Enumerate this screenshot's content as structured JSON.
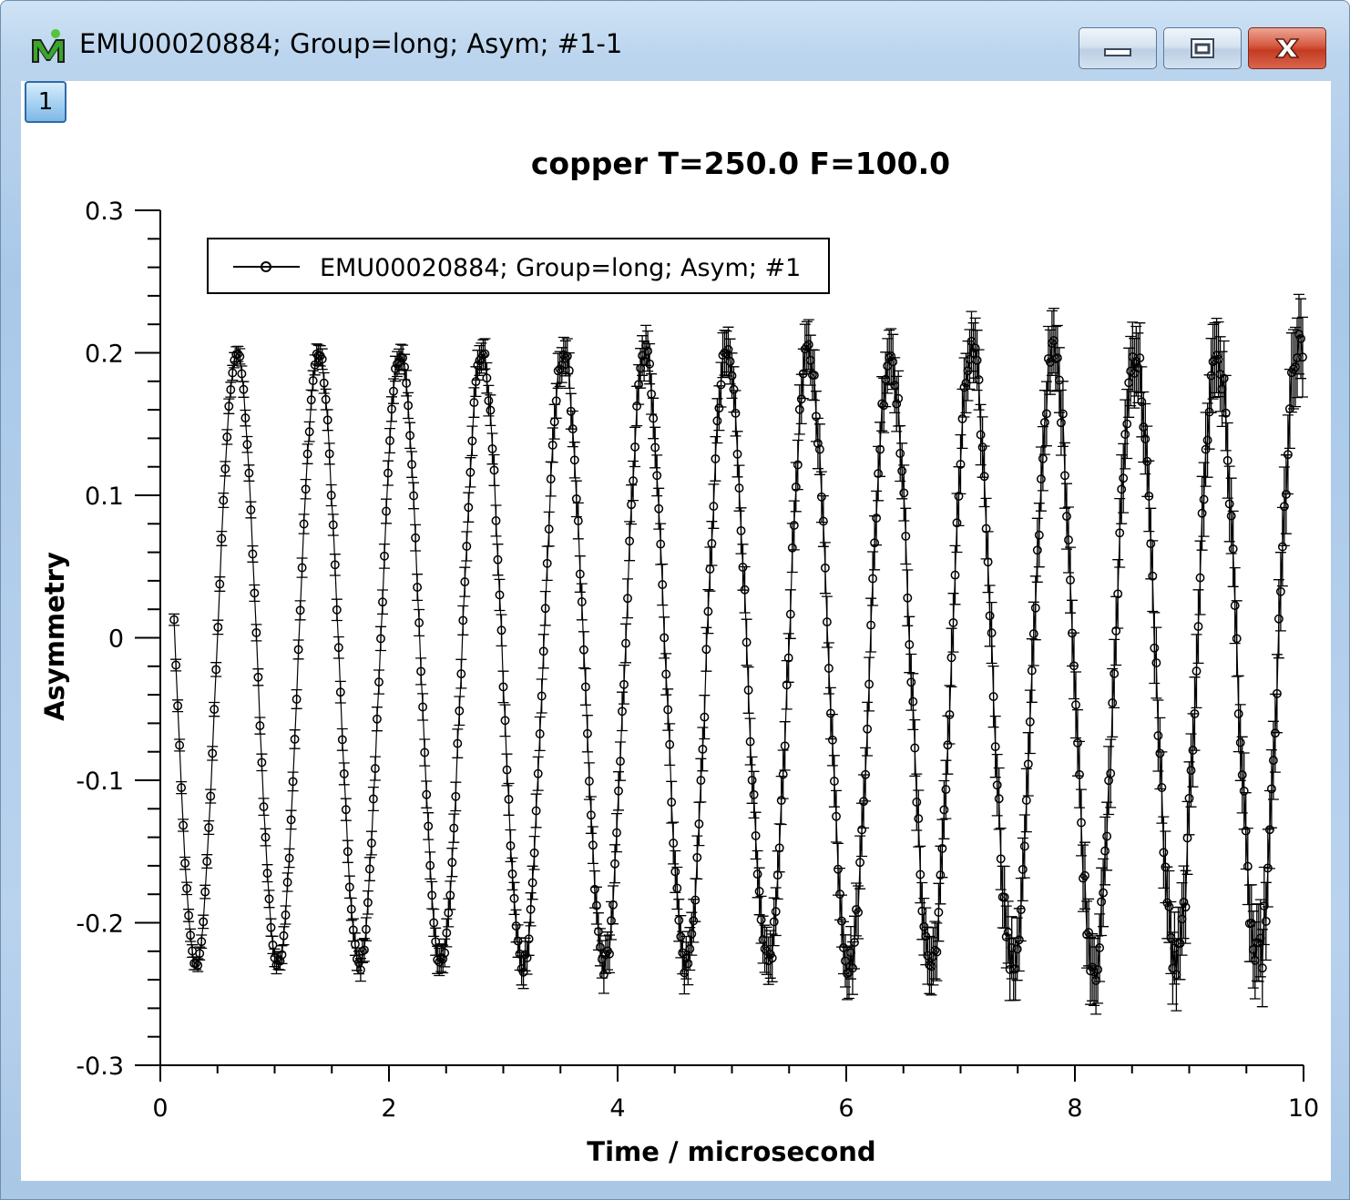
{
  "window": {
    "title": "EMU00020884; Group=long; Asym; #1-1",
    "tab_label": "1",
    "minimize_icon": "minimize-icon",
    "maximize_icon": "maximize-icon",
    "close_icon": "close-icon",
    "app_icon": "mantid-app-icon"
  },
  "chart_data": {
    "type": "scatter",
    "title": "copper T=250.0 F=100.0",
    "xlabel": "Time / microsecond",
    "ylabel": "Asymmetry",
    "xlim": [
      0,
      10
    ],
    "ylim": [
      -0.3,
      0.3
    ],
    "xticks": [
      "0",
      "2",
      "4",
      "6",
      "8",
      "10"
    ],
    "yticks": [
      "0.3",
      "0.2",
      "0.1",
      "0",
      "-0.1",
      "-0.2",
      "-0.3"
    ],
    "grid": false,
    "legend_position": "top-left",
    "series": [
      {
        "name": "EMU00020884; Group=long; Asym; #1",
        "marker": "open-circle",
        "line": true,
        "error_bars": true,
        "color": "#000000",
        "x_start": 0.12,
        "x_step": 0.016,
        "x_end": 10.0,
        "model": "A*cos(2*pi*f*(t - t0))",
        "amplitude": 0.215,
        "offset": -0.015,
        "frequency": 1.4,
        "phase_time": 0.67,
        "error_start": 0.004,
        "error_end": 0.028
      }
    ]
  }
}
